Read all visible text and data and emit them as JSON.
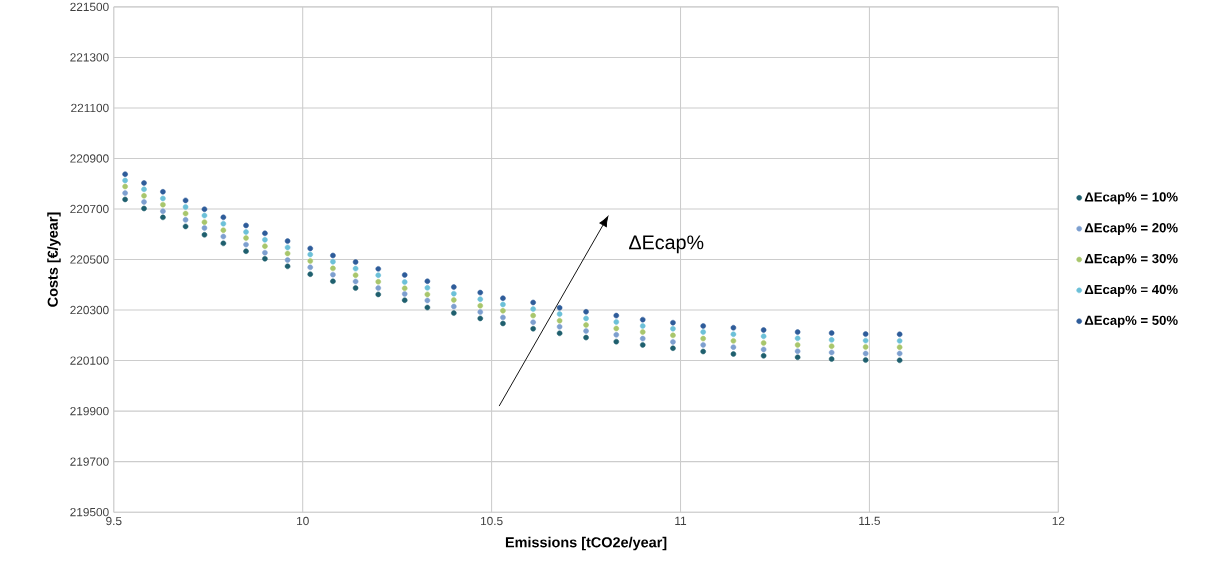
{
  "chart_data": {
    "type": "scatter",
    "xlabel": "Emissions [tCO2e/year]",
    "ylabel": "Costs [€/year]",
    "x": [
      9.53,
      9.58,
      9.63,
      9.69,
      9.74,
      9.79,
      9.85,
      9.9,
      9.96,
      10.02,
      10.08,
      10.14,
      10.2,
      10.27,
      10.33,
      10.4,
      10.47,
      10.53,
      10.61,
      10.68,
      10.75,
      10.83,
      10.9,
      10.98,
      11.06,
      11.14,
      11.22,
      11.31,
      11.4,
      11.49,
      11.58
    ],
    "series": [
      {
        "name": "ΔEcap% = 10%",
        "color": "#1f5f6e",
        "values": [
          220738,
          220702,
          220667,
          220631,
          220598,
          220564,
          220533,
          220503,
          220473,
          220442,
          220414,
          220387,
          220362,
          220339,
          220310,
          220288,
          220267,
          220247,
          220226,
          220208,
          220191,
          220175,
          220162,
          220149,
          220136,
          220126,
          220119,
          220113,
          220106,
          220102,
          220101
        ]
      },
      {
        "name": "ΔEcap% = 20%",
        "color": "#7d9fcf",
        "values": [
          220763,
          220728,
          220691,
          220657,
          220625,
          220591,
          220559,
          220527,
          220498,
          220469,
          220440,
          220413,
          220387,
          220364,
          220338,
          220314,
          220292,
          220271,
          220252,
          220234,
          220217,
          220202,
          220187,
          220174,
          220162,
          220153,
          220144,
          220137,
          220132,
          220128,
          220128
        ]
      },
      {
        "name": "ΔEcap% = 30%",
        "color": "#a8c66c",
        "values": [
          220789,
          220752,
          220717,
          220682,
          220648,
          220616,
          220585,
          220553,
          220524,
          220494,
          220465,
          220438,
          220412,
          220386,
          220362,
          220340,
          220317,
          220297,
          220278,
          220258,
          220241,
          220227,
          220213,
          220200,
          220187,
          220178,
          220170,
          220162,
          220157,
          220154,
          220153
        ]
      },
      {
        "name": "ΔEcap% = 40%",
        "color": "#6cc0d8",
        "values": [
          220813,
          220778,
          220742,
          220708,
          220674,
          220642,
          220609,
          220578,
          220548,
          220520,
          220491,
          220464,
          220438,
          220411,
          220388,
          220365,
          220343,
          220322,
          220304,
          220284,
          220267,
          220253,
          220237,
          220226,
          220213,
          220204,
          220196,
          220188,
          220182,
          220179,
          220178
        ]
      },
      {
        "name": "ΔEcap% = 50%",
        "color": "#2e5c9a",
        "values": [
          220838,
          220803,
          220768,
          220734,
          220699,
          220667,
          220635,
          220604,
          220573,
          220544,
          220516,
          220490,
          220463,
          220439,
          220414,
          220391,
          220369,
          220347,
          220330,
          220309,
          220293,
          220278,
          220262,
          220250,
          220237,
          220230,
          220221,
          220213,
          220209,
          220205,
          220204
        ]
      }
    ],
    "xlim": [
      9.5,
      12
    ],
    "xticks": [
      9.5,
      10,
      10.5,
      11,
      11.5,
      12
    ],
    "ylim": [
      219500,
      221500
    ],
    "yticks": [
      219500,
      219700,
      219900,
      220100,
      220300,
      220500,
      220700,
      220900,
      221100,
      221300,
      221500
    ],
    "grid": true,
    "legend": "right",
    "marker": "circle",
    "annotations": [
      "ΔEcap%"
    ]
  }
}
